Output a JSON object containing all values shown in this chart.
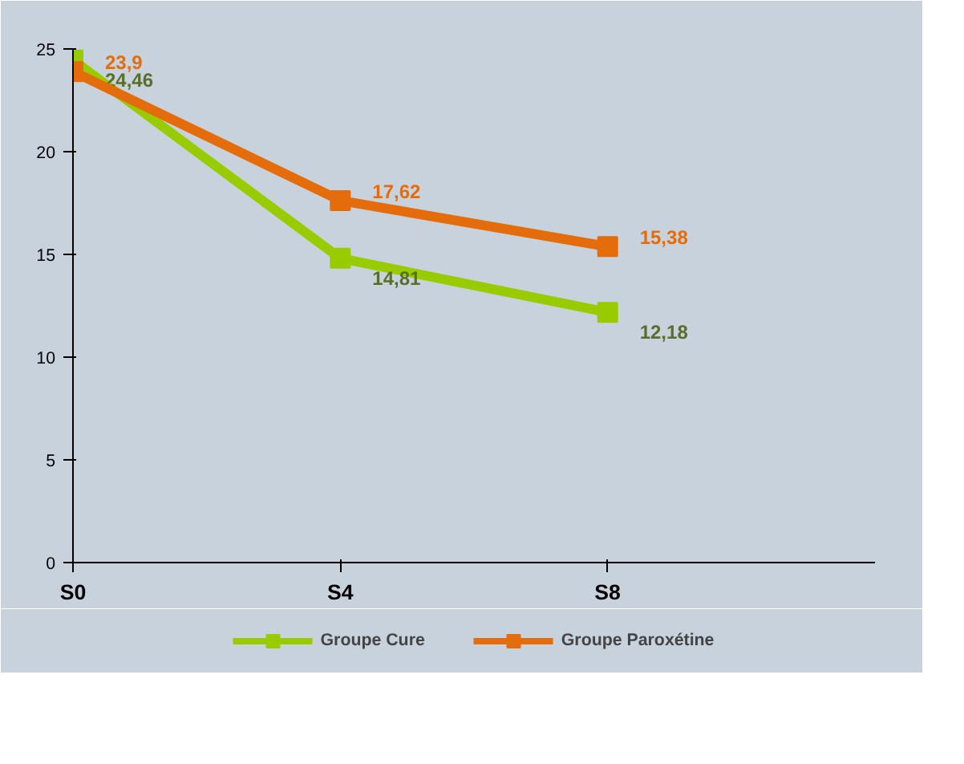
{
  "chart_data": {
    "type": "line",
    "categories": [
      "S0",
      "S4",
      "S8"
    ],
    "ylim": [
      0,
      25
    ],
    "yticks": [
      0,
      5,
      10,
      15,
      20,
      25
    ],
    "grid": false,
    "legend": "bottom",
    "marker": "square",
    "line_style": "solid",
    "series": [
      {
        "name": "Groupe Cure",
        "color": "#99cc00",
        "values": [
          24.46,
          14.81,
          12.18
        ],
        "value_labels": [
          "24,46",
          "14,81",
          "12,18"
        ]
      },
      {
        "name": "Groupe Paroxétine",
        "color": "#e46c0a",
        "values": [
          23.9,
          17.62,
          15.38
        ],
        "value_labels": [
          "23,9",
          "17,62",
          "15,38"
        ]
      }
    ]
  }
}
